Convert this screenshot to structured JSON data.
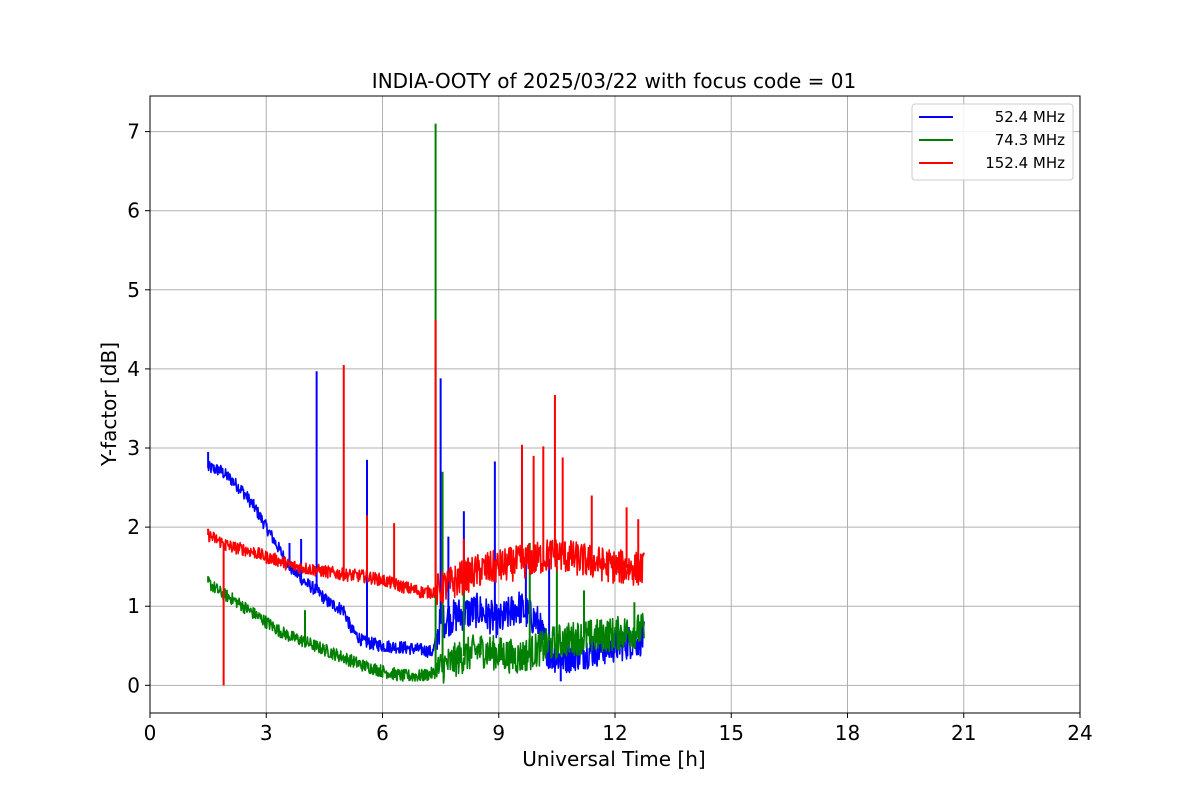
{
  "chart_data": {
    "type": "line",
    "title": "INDIA-OOTY of 2025/03/22 with focus code = 01",
    "xlabel": "Universal Time [h]",
    "ylabel": "Y-factor [dB]",
    "xlim": [
      0,
      24
    ],
    "ylim": [
      -0.35,
      7.45
    ],
    "xticks": [
      0,
      3,
      6,
      9,
      12,
      15,
      18,
      21,
      24
    ],
    "yticks": [
      0,
      1,
      2,
      3,
      4,
      5,
      6,
      7
    ],
    "grid": true,
    "legend_position": "top-right",
    "series": [
      {
        "name": "52.4 MHz",
        "color": "#0000ff",
        "points": [
          [
            1.5,
            2.75
          ],
          [
            1.8,
            2.72
          ],
          [
            2.1,
            2.6
          ],
          [
            2.4,
            2.45
          ],
          [
            2.7,
            2.25
          ],
          [
            3.0,
            2.0
          ],
          [
            3.3,
            1.75
          ],
          [
            3.6,
            1.5
          ],
          [
            4.0,
            1.3
          ],
          [
            4.3,
            1.2
          ],
          [
            4.6,
            1.05
          ],
          [
            5.0,
            0.95
          ],
          [
            5.2,
            0.7
          ],
          [
            5.5,
            0.55
          ],
          [
            6.0,
            0.5
          ],
          [
            6.5,
            0.48
          ],
          [
            7.0,
            0.45
          ],
          [
            7.3,
            0.42
          ],
          [
            7.5,
            0.8
          ],
          [
            8.0,
            0.9
          ],
          [
            8.5,
            0.95
          ],
          [
            9.0,
            0.8
          ],
          [
            9.5,
            1.0
          ],
          [
            10.0,
            0.8
          ],
          [
            10.3,
            0.4
          ],
          [
            10.6,
            0.35
          ],
          [
            11.0,
            0.4
          ],
          [
            11.5,
            0.45
          ],
          [
            12.0,
            0.5
          ],
          [
            12.4,
            0.55
          ],
          [
            12.75,
            0.6
          ]
        ],
        "spikes": [
          [
            1.5,
            2.95
          ],
          [
            3.6,
            1.8
          ],
          [
            3.9,
            1.85
          ],
          [
            4.3,
            3.97
          ],
          [
            5.6,
            2.85
          ],
          [
            7.5,
            3.88
          ],
          [
            7.7,
            1.88
          ],
          [
            8.1,
            2.2
          ],
          [
            8.9,
            2.83
          ],
          [
            9.7,
            1.7
          ],
          [
            10.3,
            1.6
          ],
          [
            10.6,
            0.05
          ]
        ]
      },
      {
        "name": "74.3 MHz",
        "color": "#008000",
        "points": [
          [
            1.5,
            1.3
          ],
          [
            1.8,
            1.18
          ],
          [
            2.1,
            1.1
          ],
          [
            2.4,
            1.0
          ],
          [
            2.7,
            0.9
          ],
          [
            3.0,
            0.8
          ],
          [
            3.3,
            0.7
          ],
          [
            3.6,
            0.62
          ],
          [
            4.0,
            0.55
          ],
          [
            4.5,
            0.45
          ],
          [
            5.0,
            0.35
          ],
          [
            5.5,
            0.25
          ],
          [
            6.0,
            0.18
          ],
          [
            6.5,
            0.12
          ],
          [
            7.0,
            0.12
          ],
          [
            7.3,
            0.15
          ],
          [
            7.6,
            0.25
          ],
          [
            8.0,
            0.35
          ],
          [
            8.5,
            0.45
          ],
          [
            9.0,
            0.4
          ],
          [
            9.5,
            0.35
          ],
          [
            10.0,
            0.45
          ],
          [
            10.5,
            0.55
          ],
          [
            11.0,
            0.6
          ],
          [
            11.5,
            0.62
          ],
          [
            12.0,
            0.65
          ],
          [
            12.4,
            0.68
          ],
          [
            12.75,
            0.7
          ]
        ],
        "spikes": [
          [
            1.5,
            1.38
          ],
          [
            4.0,
            0.95
          ],
          [
            7.37,
            7.1
          ],
          [
            7.55,
            2.7
          ],
          [
            8.1,
            1.5
          ],
          [
            9.8,
            1.8
          ],
          [
            10.5,
            1.5
          ],
          [
            11.2,
            1.2
          ],
          [
            12.5,
            1.05
          ]
        ]
      },
      {
        "name": "152.4 MHz",
        "color": "#ff0000",
        "points": [
          [
            1.5,
            1.9
          ],
          [
            1.8,
            1.82
          ],
          [
            2.1,
            1.75
          ],
          [
            2.4,
            1.72
          ],
          [
            2.7,
            1.68
          ],
          [
            3.0,
            1.62
          ],
          [
            3.3,
            1.58
          ],
          [
            3.6,
            1.52
          ],
          [
            4.0,
            1.48
          ],
          [
            4.5,
            1.44
          ],
          [
            5.0,
            1.4
          ],
          [
            5.5,
            1.38
          ],
          [
            6.0,
            1.33
          ],
          [
            6.5,
            1.25
          ],
          [
            7.0,
            1.18
          ],
          [
            7.3,
            1.18
          ],
          [
            7.5,
            1.22
          ],
          [
            8.0,
            1.35
          ],
          [
            8.5,
            1.45
          ],
          [
            9.0,
            1.5
          ],
          [
            9.5,
            1.55
          ],
          [
            10.0,
            1.6
          ],
          [
            10.3,
            1.65
          ],
          [
            10.6,
            1.65
          ],
          [
            11.0,
            1.6
          ],
          [
            11.5,
            1.55
          ],
          [
            12.0,
            1.5
          ],
          [
            12.4,
            1.48
          ],
          [
            12.75,
            1.47
          ]
        ],
        "spikes": [
          [
            1.5,
            1.98
          ],
          [
            1.9,
            0.0
          ],
          [
            1.95,
            1.7
          ],
          [
            5.0,
            4.05
          ],
          [
            5.6,
            2.15
          ],
          [
            6.3,
            2.05
          ],
          [
            7.37,
            4.62
          ],
          [
            8.1,
            1.85
          ],
          [
            9.6,
            3.04
          ],
          [
            9.9,
            2.9
          ],
          [
            10.15,
            3.02
          ],
          [
            10.45,
            3.67
          ],
          [
            10.65,
            2.88
          ],
          [
            11.4,
            2.4
          ],
          [
            12.3,
            2.25
          ],
          [
            12.6,
            2.1
          ]
        ]
      }
    ]
  }
}
